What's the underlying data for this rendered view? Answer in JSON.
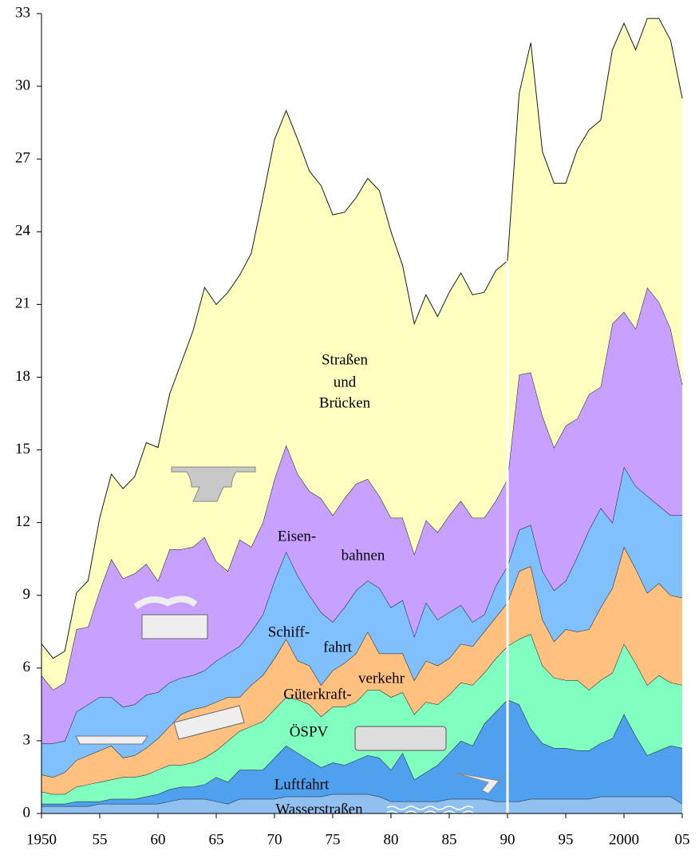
{
  "chart_data": {
    "type": "stacked_area",
    "x": [
      1950,
      1951,
      1952,
      1953,
      1954,
      1955,
      1956,
      1957,
      1958,
      1959,
      1960,
      1961,
      1962,
      1963,
      1964,
      1965,
      1966,
      1967,
      1968,
      1969,
      1970,
      1971,
      1972,
      1973,
      1974,
      1975,
      1976,
      1977,
      1978,
      1979,
      1980,
      1981,
      1982,
      1983,
      1984,
      1985,
      1986,
      1987,
      1988,
      1989,
      1990,
      1991,
      1992,
      1993,
      1994,
      1995,
      1996,
      1997,
      1998,
      1999,
      2000,
      2001,
      2002,
      2003,
      2004,
      2005
    ],
    "xlim": [
      1950,
      2005
    ],
    "xticks": [
      {
        "value": 1950,
        "label": "1950"
      },
      {
        "value": 1955,
        "label": "55"
      },
      {
        "value": 1960,
        "label": "60"
      },
      {
        "value": 1965,
        "label": "65"
      },
      {
        "value": 1970,
        "label": "70"
      },
      {
        "value": 1975,
        "label": "75"
      },
      {
        "value": 1980,
        "label": "80"
      },
      {
        "value": 1985,
        "label": "85"
      },
      {
        "value": 1990,
        "label": "90"
      },
      {
        "value": 1995,
        "label": "95"
      },
      {
        "value": 2000,
        "label": "2000"
      },
      {
        "value": 2005,
        "label": "05"
      }
    ],
    "ylim": [
      0,
      33
    ],
    "yticks": [
      0,
      3,
      6,
      9,
      12,
      15,
      18,
      21,
      24,
      27,
      30,
      33
    ],
    "series": [
      {
        "label_lines": [
          "Wasserstraßen"
        ],
        "color": "#90c0f0",
        "values": [
          0.3,
          0.3,
          0.3,
          0.3,
          0.3,
          0.4,
          0.4,
          0.4,
          0.4,
          0.4,
          0.4,
          0.5,
          0.6,
          0.6,
          0.6,
          0.5,
          0.4,
          0.6,
          0.6,
          0.6,
          0.6,
          0.7,
          0.7,
          0.7,
          0.7,
          0.8,
          0.8,
          0.8,
          0.8,
          0.7,
          0.5,
          0.5,
          0.5,
          0.5,
          0.5,
          0.6,
          0.6,
          0.6,
          0.6,
          0.5,
          0.5,
          0.5,
          0.6,
          0.6,
          0.6,
          0.6,
          0.6,
          0.6,
          0.7,
          0.7,
          0.7,
          0.7,
          0.7,
          0.7,
          0.7,
          0.4
        ]
      },
      {
        "label_lines": [
          "Luftfahrt"
        ],
        "color": "#50a0f0",
        "values": [
          0.1,
          0.1,
          0.1,
          0.2,
          0.2,
          0.1,
          0.2,
          0.2,
          0.2,
          0.3,
          0.4,
          0.5,
          0.5,
          0.5,
          0.6,
          1.0,
          0.9,
          1.2,
          1.2,
          1.2,
          1.7,
          2.1,
          1.8,
          1.5,
          1.2,
          1.3,
          1.2,
          1.4,
          1.6,
          1.6,
          1.3,
          2.0,
          0.9,
          1.2,
          1.5,
          1.9,
          2.4,
          2.2,
          3.1,
          3.7,
          4.2,
          4.0,
          2.9,
          2.3,
          2.1,
          2.1,
          2.0,
          2.0,
          2.2,
          2.4,
          3.4,
          2.5,
          1.7,
          1.9,
          2.1,
          2.3
        ]
      },
      {
        "label_lines": [
          "ÖSPV"
        ],
        "color": "#80ffc0",
        "values": [
          0.5,
          0.4,
          0.4,
          0.6,
          0.7,
          0.8,
          0.8,
          0.9,
          0.9,
          0.9,
          1.0,
          1.0,
          0.9,
          1.0,
          1.1,
          1.1,
          1.7,
          1.6,
          1.8,
          2.0,
          2.0,
          2.0,
          2.2,
          2.3,
          2.1,
          2.3,
          2.4,
          2.4,
          2.7,
          2.8,
          3.0,
          2.5,
          2.7,
          2.9,
          2.5,
          2.4,
          2.4,
          2.5,
          2.1,
          2.2,
          2.2,
          2.7,
          3.9,
          3.2,
          2.9,
          2.8,
          2.9,
          2.5,
          2.6,
          2.7,
          2.9,
          3.0,
          2.9,
          3.1,
          2.6,
          2.6
        ]
      },
      {
        "label_lines": [
          "Güterkraft-",
          "verkehr"
        ],
        "color": "#ffc080",
        "values": [
          0.7,
          0.7,
          0.9,
          1.1,
          1.2,
          1.3,
          1.4,
          0.8,
          0.9,
          1.1,
          1.3,
          1.6,
          2.1,
          2.2,
          2.1,
          2.0,
          1.8,
          1.4,
          1.7,
          1.9,
          2.1,
          2.4,
          1.6,
          1.6,
          1.3,
          1.5,
          1.8,
          2.0,
          2.4,
          1.5,
          1.8,
          1.6,
          1.4,
          1.7,
          1.6,
          1.5,
          1.6,
          1.6,
          1.7,
          1.7,
          1.8,
          2.8,
          2.8,
          1.9,
          1.5,
          2.1,
          2.0,
          2.5,
          3.0,
          3.5,
          4.0,
          3.9,
          3.8,
          3.8,
          3.6,
          3.6
        ]
      },
      {
        "label_lines": [
          "Schiff-",
          "fahrt"
        ],
        "color": "#80c0ff",
        "values": [
          1.3,
          1.4,
          1.3,
          2.0,
          2.1,
          2.2,
          2.0,
          2.1,
          2.1,
          2.2,
          1.9,
          1.8,
          1.5,
          1.4,
          1.5,
          1.7,
          1.8,
          2.1,
          2.2,
          2.5,
          3.2,
          3.6,
          3.5,
          2.9,
          3.0,
          2.0,
          2.3,
          2.6,
          2.1,
          2.7,
          1.9,
          2.2,
          1.8,
          2.4,
          1.9,
          1.9,
          1.6,
          1.0,
          0.7,
          1.3,
          1.5,
          1.7,
          1.7,
          2.0,
          2.1,
          2.0,
          3.1,
          4.1,
          4.1,
          2.7,
          3.3,
          3.4,
          4.0,
          3.2,
          3.3,
          3.4
        ]
      },
      {
        "label_lines": [
          "Eisen-",
          "bahnen"
        ],
        "color": "#c8a0ff",
        "values": [
          2.8,
          2.2,
          2.4,
          3.4,
          3.2,
          4.4,
          5.7,
          5.3,
          5.4,
          5.4,
          4.6,
          5.5,
          5.3,
          5.3,
          5.5,
          4.1,
          3.4,
          4.4,
          3.5,
          3.8,
          4.2,
          4.4,
          4.2,
          4.3,
          4.7,
          4.4,
          4.5,
          4.4,
          4.2,
          3.8,
          3.7,
          3.4,
          3.4,
          3.4,
          3.6,
          4.0,
          4.3,
          4.3,
          4.0,
          3.5,
          3.6,
          6.4,
          6.3,
          6.4,
          5.9,
          6.4,
          5.7,
          5.6,
          5.0,
          8.2,
          6.4,
          6.5,
          8.6,
          8.4,
          7.7,
          5.4
        ]
      },
      {
        "label_lines": [
          "Straßen",
          "und",
          "Brücken"
        ],
        "color": "#ffffc0",
        "values": [
          1.3,
          1.3,
          1.3,
          1.5,
          1.9,
          3.0,
          3.5,
          3.7,
          4.0,
          5.0,
          5.5,
          6.4,
          7.7,
          8.9,
          10.3,
          10.6,
          11.5,
          10.9,
          12.1,
          13.4,
          14.0,
          13.8,
          13.8,
          13.2,
          12.9,
          12.4,
          11.8,
          11.8,
          12.4,
          12.6,
          11.8,
          10.4,
          9.5,
          9.3,
          8.9,
          9.2,
          9.4,
          9.2,
          9.3,
          9.5,
          9.0,
          11.6,
          13.6,
          10.9,
          10.9,
          10.0,
          11.1,
          10.9,
          11.0,
          11.3,
          11.9,
          11.5,
          11.1,
          11.7,
          11.9,
          11.8
        ]
      }
    ]
  }
}
